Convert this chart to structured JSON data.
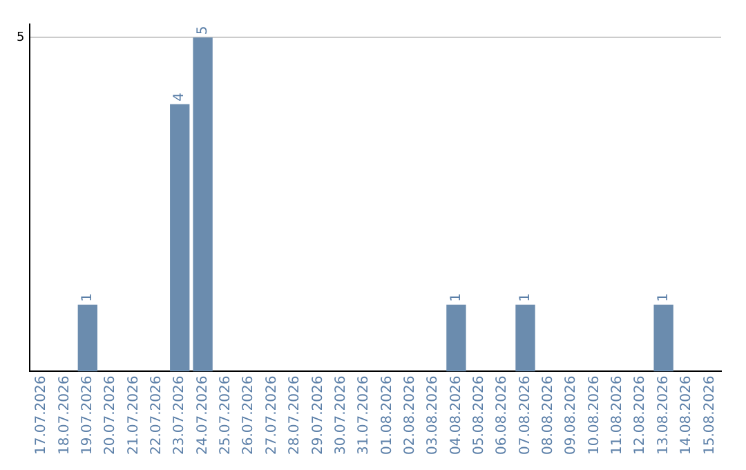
{
  "chart_data": {
    "type": "bar",
    "categories": [
      "17.07.2026",
      "18.07.2026",
      "19.07.2026",
      "20.07.2026",
      "21.07.2026",
      "22.07.2026",
      "23.07.2026",
      "24.07.2026",
      "25.07.2026",
      "26.07.2026",
      "27.07.2026",
      "28.07.2026",
      "29.07.2026",
      "30.07.2026",
      "31.07.2026",
      "01.08.2026",
      "02.08.2026",
      "03.08.2026",
      "04.08.2026",
      "05.08.2026",
      "06.08.2026",
      "07.08.2026",
      "08.08.2026",
      "09.08.2026",
      "10.08.2026",
      "11.08.2026",
      "12.08.2026",
      "13.08.2026",
      "14.08.2026",
      "15.08.2026"
    ],
    "values": [
      0,
      0,
      1,
      0,
      0,
      0,
      4,
      5,
      0,
      0,
      0,
      0,
      0,
      0,
      0,
      0,
      0,
      0,
      1,
      0,
      0,
      1,
      0,
      0,
      0,
      0,
      0,
      1,
      0,
      0
    ],
    "value_labels": [
      null,
      null,
      "1",
      null,
      null,
      null,
      "4",
      "5",
      null,
      null,
      null,
      null,
      null,
      null,
      null,
      null,
      null,
      null,
      "1",
      null,
      null,
      "1",
      null,
      null,
      null,
      null,
      null,
      "1",
      null,
      null
    ],
    "color": "#6b8cae",
    "ylim": [
      0,
      5.2
    ],
    "yticks": [
      5
    ],
    "grid": "y"
  }
}
